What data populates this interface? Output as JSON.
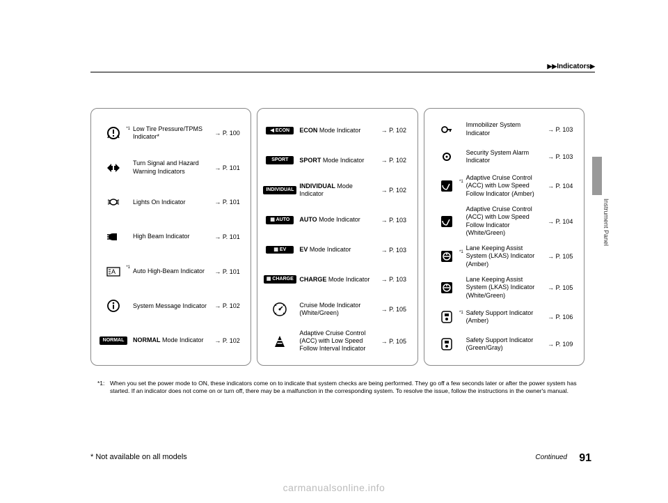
{
  "header": {
    "breadcrumb": "Indicators"
  },
  "side": {
    "section": "Instrument Panel"
  },
  "columns": [
    {
      "rows": [
        {
          "icon": "tpms",
          "sup": "*1",
          "label_bold": "",
          "label": "Low Tire Pressure/TPMS Indicator*",
          "page": "P. 100"
        },
        {
          "icon": "turn-signal",
          "label_bold": "",
          "label": "Turn Signal and Hazard Warning Indicators",
          "page": "P. 101"
        },
        {
          "icon": "lights-on",
          "label_bold": "",
          "label": "Lights On Indicator",
          "page": "P. 101"
        },
        {
          "icon": "high-beam",
          "label_bold": "",
          "label": "High Beam Indicator",
          "page": "P. 101"
        },
        {
          "icon": "auto-high-beam",
          "sup": "*1",
          "label_bold": "",
          "label": "Auto High-Beam Indicator",
          "page": "P. 101"
        },
        {
          "icon": "info",
          "label_bold": "",
          "label": "System Message Indicator",
          "page": "P. 102"
        },
        {
          "icon": "badge",
          "badge_text": "NORMAL",
          "label_bold": "NORMAL",
          "label": " Mode Indicator",
          "page": "P. 102"
        }
      ]
    },
    {
      "rows": [
        {
          "icon": "badge",
          "badge_text": "◀ ECON",
          "label_bold": "ECON",
          "label": " Mode Indicator",
          "page": "P. 102"
        },
        {
          "icon": "badge",
          "badge_text": "SPORT",
          "label_bold": "SPORT",
          "label": " Mode Indicator",
          "page": "P. 102"
        },
        {
          "icon": "badge",
          "badge_text": "INDIVIDUAL",
          "label_bold": "INDIVIDUAL",
          "label": " Mode Indicator",
          "page": "P. 102"
        },
        {
          "icon": "badge",
          "badge_text": "▦ AUTO",
          "label_bold": "AUTO",
          "label": " Mode Indicator",
          "page": "P. 103"
        },
        {
          "icon": "badge",
          "badge_text": "▦ EV",
          "label_bold": "EV",
          "label": " Mode Indicator",
          "page": "P. 103"
        },
        {
          "icon": "badge",
          "badge_text": "▦ CHARGE",
          "label_bold": "CHARGE",
          "label": " Mode Indicator",
          "page": "P. 103"
        },
        {
          "icon": "cruise-mode",
          "label_bold": "",
          "label": "Cruise Mode Indicator (White/Green)",
          "page": "P. 105"
        },
        {
          "icon": "interval",
          "label_bold": "",
          "label": "Adaptive Cruise Control (ACC) with Low Speed Follow Interval Indicator",
          "page": "P. 105"
        }
      ]
    },
    {
      "rows": [
        {
          "icon": "immobilizer",
          "label_bold": "",
          "label": "Immobilizer System Indicator",
          "page": "P. 103"
        },
        {
          "icon": "security",
          "label_bold": "",
          "label": "Security System Alarm Indicator",
          "page": "P. 103"
        },
        {
          "icon": "acc-gauge",
          "sup": "*1",
          "label_bold": "",
          "label": "Adaptive Cruise Control (ACC) with Low Speed Follow Indicator (Amber)",
          "page": "P. 104"
        },
        {
          "icon": "acc-gauge",
          "label_bold": "",
          "label": "Adaptive Cruise Control (ACC) with Low Speed Follow Indicator (White/Green)",
          "page": "P. 104"
        },
        {
          "icon": "lkas",
          "sup": "*1",
          "label_bold": "",
          "label": "Lane Keeping Assist System (LKAS) Indicator (Amber)",
          "page": "P. 105"
        },
        {
          "icon": "lkas",
          "label_bold": "",
          "label": "Lane Keeping Assist System (LKAS) Indicator (White/Green)",
          "page": "P. 105"
        },
        {
          "icon": "safety-support",
          "sup": "*1",
          "label_bold": "",
          "label": "Safety Support Indicator (Amber)",
          "page": "P. 106"
        },
        {
          "icon": "safety-support",
          "label_bold": "",
          "label": "Safety Support Indicator (Green/Gray)",
          "page": "P. 109"
        }
      ]
    }
  ],
  "footnote": {
    "marker": "*1:",
    "text": "When you set the power mode to ON, these indicators come on to indicate that system checks are being performed. They go off a few seconds later or after the power system has started. If an indicator does not come on or turn off, there may be a malfunction in the corresponding system. To resolve the issue, follow the instructions in the owner's manual."
  },
  "models_note": "* Not available on all models",
  "continued": "Continued",
  "page_number": "91",
  "watermark": "carmanualsonline.info"
}
